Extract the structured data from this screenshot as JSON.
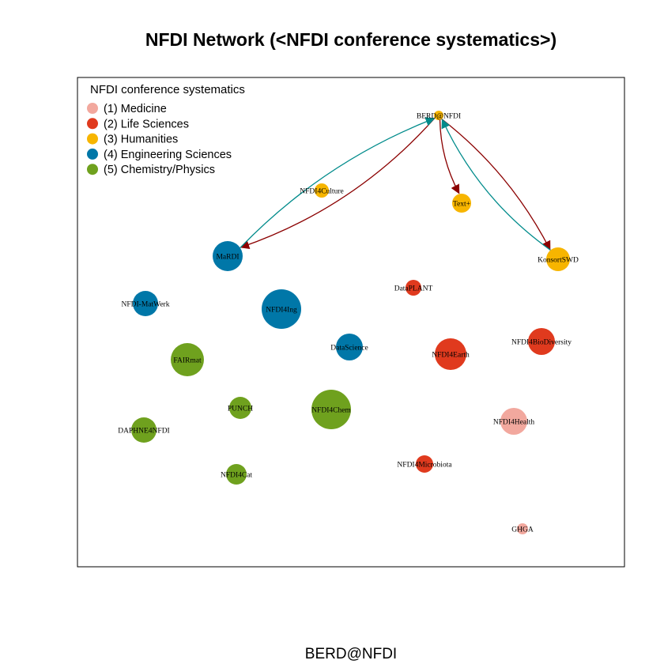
{
  "title": "NFDI Network (<NFDI conference systematics>)",
  "caption": "BERD@NFDI",
  "legend": {
    "title": "NFDI conference systematics",
    "items": [
      {
        "label": "(1) Medicine",
        "color": "#F2A89E"
      },
      {
        "label": "(2) Life Sciences",
        "color": "#E03A1E"
      },
      {
        "label": "(3) Humanities",
        "color": "#F7B500"
      },
      {
        "label": "(4) Engineering Sciences",
        "color": "#0077A8"
      },
      {
        "label": "(5) Chemistry/Physics",
        "color": "#6FA11E"
      }
    ]
  },
  "nodes": [
    {
      "id": "BERD@NFDI",
      "group": 3
    },
    {
      "id": "Text+",
      "group": 3
    },
    {
      "id": "NFDI4Culture",
      "group": 3
    },
    {
      "id": "KonsortSWD",
      "group": 3
    },
    {
      "id": "MaRDI",
      "group": 4
    },
    {
      "id": "NFDI-MatWerk",
      "group": 4
    },
    {
      "id": "NFDI4Ing",
      "group": 4
    },
    {
      "id": "DataScience",
      "group": 4
    },
    {
      "id": "DataPLANT",
      "group": 2
    },
    {
      "id": "NFDI4BioDiversity",
      "group": 2
    },
    {
      "id": "NFDI4Earth",
      "group": 2
    },
    {
      "id": "NFDI4Microbiota",
      "group": 2
    },
    {
      "id": "FAIRmat",
      "group": 5
    },
    {
      "id": "PUNCH",
      "group": 5
    },
    {
      "id": "NFDI4Chem",
      "group": 5
    },
    {
      "id": "DAPHNE4NFDI",
      "group": 5
    },
    {
      "id": "NFDI4Cat",
      "group": 5
    },
    {
      "id": "NFDI4Health",
      "group": 1
    },
    {
      "id": "GHGA",
      "group": 1
    }
  ],
  "edges": [
    {
      "from": "BERD@NFDI",
      "to": "MaRDI",
      "color": "#8B0000"
    },
    {
      "from": "MaRDI",
      "to": "BERD@NFDI",
      "color": "#008B8B"
    },
    {
      "from": "BERD@NFDI",
      "to": "Text+",
      "color": "#8B0000"
    },
    {
      "from": "BERD@NFDI",
      "to": "KonsortSWD",
      "color": "#8B0000"
    },
    {
      "from": "KonsortSWD",
      "to": "BERD@NFDI",
      "color": "#008B8B"
    }
  ]
}
